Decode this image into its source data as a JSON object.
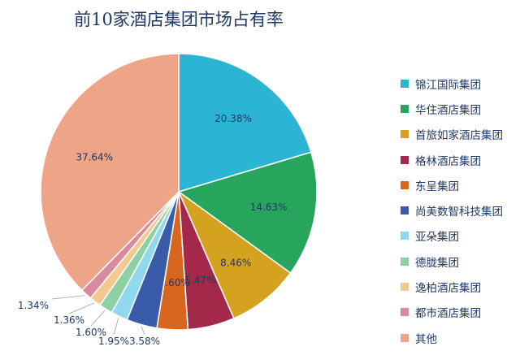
{
  "chart_data": {
    "type": "pie",
    "title": "前10家酒店集团市场占有率",
    "categories": [
      "锦江国际集团",
      "华住酒店集团",
      "首旅如家酒店集团",
      "格林酒店集团",
      "东呈集团",
      "尚美数智科技集团",
      "亚朵集团",
      "德胧集团",
      "逸柏酒店集团",
      "都市酒店集团",
      "其他"
    ],
    "values": [
      20.38,
      14.63,
      8.46,
      5.47,
      3.6,
      3.58,
      1.95,
      1.6,
      1.36,
      1.34,
      37.64
    ],
    "data_labels": [
      "20.38%",
      "14.63%",
      "8.46%",
      "5.47%",
      "3.60%",
      "3.58%",
      "1.95%",
      "1.60%",
      "1.36%",
      "1.34%",
      "37.64%"
    ],
    "colors": [
      "#2bb4d4",
      "#27a55d",
      "#d4a21f",
      "#a3284a",
      "#d9661f",
      "#3a5ca8",
      "#8fd8ee",
      "#8ed0a4",
      "#f2c98f",
      "#d88b9e",
      "#eea486"
    ],
    "legend_position": "right",
    "start_angle_deg": 0,
    "direction": "clockwise"
  }
}
